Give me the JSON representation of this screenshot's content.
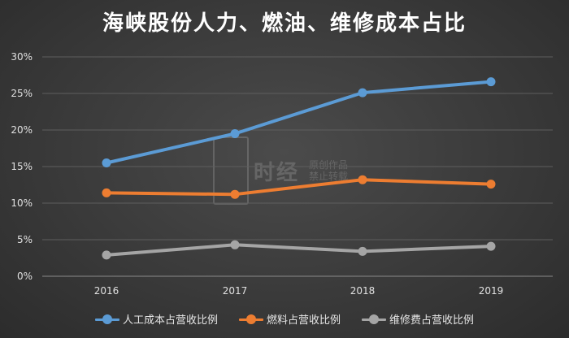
{
  "chart_data": {
    "type": "line",
    "title": "海峡股份人力、燃油、维修成本占比",
    "categories": [
      "2016",
      "2017",
      "2018",
      "2019"
    ],
    "ylim": [
      0,
      30
    ],
    "yticks": [
      "0%",
      "5%",
      "10%",
      "15%",
      "20%",
      "25%",
      "30%"
    ],
    "grid": true,
    "legend_position": "bottom",
    "series": [
      {
        "name": "人工成本占营收比例",
        "color": "#5b9bd5",
        "values": [
          15.5,
          19.5,
          25.1,
          26.6
        ]
      },
      {
        "name": "燃料占营收比例",
        "color": "#ed7d31",
        "values": [
          11.4,
          11.2,
          13.2,
          12.6
        ]
      },
      {
        "name": "维修费占营收比例",
        "color": "#a5a5a5",
        "values": [
          2.9,
          4.3,
          3.4,
          4.1
        ]
      }
    ]
  },
  "watermark": {
    "logo_text": "时经",
    "line1": "原创作品",
    "line2": "禁止转载"
  }
}
